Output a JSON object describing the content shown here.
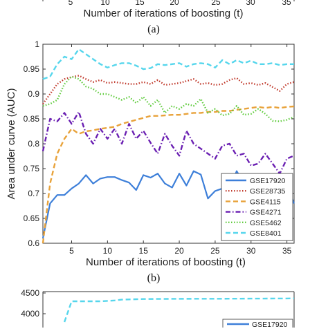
{
  "top_fragment": {
    "xtick_labels": [
      "5",
      "10",
      "15",
      "20",
      "25",
      "30",
      "35"
    ],
    "xlabel": "Number of iterations of boosting (t)",
    "caption": "(a)"
  },
  "bottom_fragment": {
    "ytick_labels": [
      "4500",
      "4000"
    ],
    "legend_label": "GSE17920"
  },
  "caption_b": "(b)",
  "chart_data": {
    "type": "line",
    "title": "",
    "xlabel": "Number of iterations of boosting (t)",
    "ylabel": "Area under curve (AUC)",
    "xlim": [
      1,
      36
    ],
    "ylim": [
      0.6,
      1.0
    ],
    "xticks": [
      5,
      10,
      15,
      20,
      25,
      30,
      35
    ],
    "yticks": [
      0.6,
      0.65,
      0.7,
      0.75,
      0.8,
      0.85,
      0.9,
      0.95,
      1
    ],
    "ytick_labels": [
      "0.6",
      "0.65",
      "0.7",
      "0.75",
      "0.8",
      "0.85",
      "0.9",
      "0.95",
      "1"
    ],
    "grid": false,
    "legend_position": "bottom-right",
    "x": [
      1,
      2,
      3,
      4,
      5,
      6,
      7,
      8,
      9,
      10,
      11,
      12,
      13,
      14,
      15,
      16,
      17,
      18,
      19,
      20,
      21,
      22,
      23,
      24,
      25,
      26,
      27,
      28,
      29,
      30,
      31,
      32,
      33,
      34,
      35,
      36
    ],
    "series": [
      {
        "name": "GSE17920",
        "color": "#3d7fd9",
        "dash": "solid",
        "values": [
          0.61,
          0.68,
          0.697,
          0.697,
          0.71,
          0.72,
          0.737,
          0.72,
          0.73,
          0.733,
          0.733,
          0.727,
          0.722,
          0.707,
          0.737,
          0.732,
          0.74,
          0.72,
          0.712,
          0.74,
          0.716,
          0.745,
          0.738,
          0.69,
          0.705,
          0.71,
          0.708,
          0.745,
          0.72,
          0.706,
          0.731,
          0.728,
          0.703,
          0.72,
          0.715,
          0.68
        ]
      },
      {
        "name": "GSE28735",
        "color": "#c0392b",
        "dash": "dotted",
        "values": [
          0.88,
          0.9,
          0.92,
          0.93,
          0.934,
          0.937,
          0.93,
          0.924,
          0.928,
          0.922,
          0.924,
          0.922,
          0.92,
          0.92,
          0.924,
          0.92,
          0.928,
          0.918,
          0.92,
          0.922,
          0.926,
          0.93,
          0.92,
          0.922,
          0.918,
          0.92,
          0.928,
          0.932,
          0.92,
          0.922,
          0.918,
          0.922,
          0.914,
          0.906,
          0.92,
          0.924
        ]
      },
      {
        "name": "GSE4115",
        "color": "#e8a23a",
        "dash": "dashed",
        "values": [
          0.6,
          0.72,
          0.78,
          0.81,
          0.83,
          0.82,
          0.825,
          0.827,
          0.83,
          0.832,
          0.834,
          0.84,
          0.844,
          0.848,
          0.852,
          0.856,
          0.856,
          0.857,
          0.858,
          0.858,
          0.86,
          0.862,
          0.862,
          0.864,
          0.864,
          0.866,
          0.866,
          0.868,
          0.87,
          0.872,
          0.874,
          0.872,
          0.874,
          0.872,
          0.874,
          0.875
        ]
      },
      {
        "name": "GSE4271",
        "color": "#6a1fb2",
        "dash": "dashdot",
        "values": [
          0.785,
          0.85,
          0.845,
          0.862,
          0.84,
          0.864,
          0.82,
          0.8,
          0.83,
          0.81,
          0.83,
          0.8,
          0.84,
          0.81,
          0.826,
          0.802,
          0.78,
          0.82,
          0.796,
          0.776,
          0.826,
          0.8,
          0.79,
          0.78,
          0.77,
          0.796,
          0.8,
          0.776,
          0.78,
          0.756,
          0.76,
          0.78,
          0.76,
          0.74,
          0.77,
          0.776
        ]
      },
      {
        "name": "GSE5462",
        "color": "#5fcb3c",
        "dash": "dotted",
        "values": [
          0.876,
          0.88,
          0.888,
          0.92,
          0.935,
          0.93,
          0.915,
          0.91,
          0.9,
          0.9,
          0.894,
          0.888,
          0.894,
          0.882,
          0.894,
          0.876,
          0.888,
          0.862,
          0.876,
          0.87,
          0.88,
          0.876,
          0.89,
          0.862,
          0.87,
          0.857,
          0.86,
          0.876,
          0.858,
          0.86,
          0.87,
          0.86,
          0.846,
          0.845,
          0.848,
          0.854
        ]
      },
      {
        "name": "GSE8401",
        "color": "#56d6ec",
        "dash": "dashed",
        "values": [
          0.93,
          0.935,
          0.96,
          0.975,
          0.97,
          0.99,
          0.98,
          0.97,
          0.96,
          0.953,
          0.958,
          0.962,
          0.962,
          0.957,
          0.95,
          0.952,
          0.96,
          0.958,
          0.96,
          0.962,
          0.955,
          0.96,
          0.962,
          0.96,
          0.953,
          0.968,
          0.96,
          0.968,
          0.962,
          0.967,
          0.96,
          0.96,
          0.962,
          0.958,
          0.96,
          0.96
        ]
      }
    ]
  },
  "bottom_chart_data": {
    "type": "line",
    "yticks": [
      4000,
      4500
    ],
    "series": [
      {
        "name": "GSE8401",
        "color": "#56d6ec",
        "dash": "dashed",
        "x": [
          4,
          5,
          6,
          7,
          8,
          9,
          10,
          11,
          12,
          13,
          14,
          15,
          20,
          25,
          30,
          35,
          36
        ],
        "values": [
          3800,
          4300,
          4300,
          4300,
          4300,
          4300,
          4310,
          4320,
          4340,
          4345,
          4350,
          4355,
          4360,
          4362,
          4365,
          4368,
          4370
        ]
      }
    ]
  }
}
